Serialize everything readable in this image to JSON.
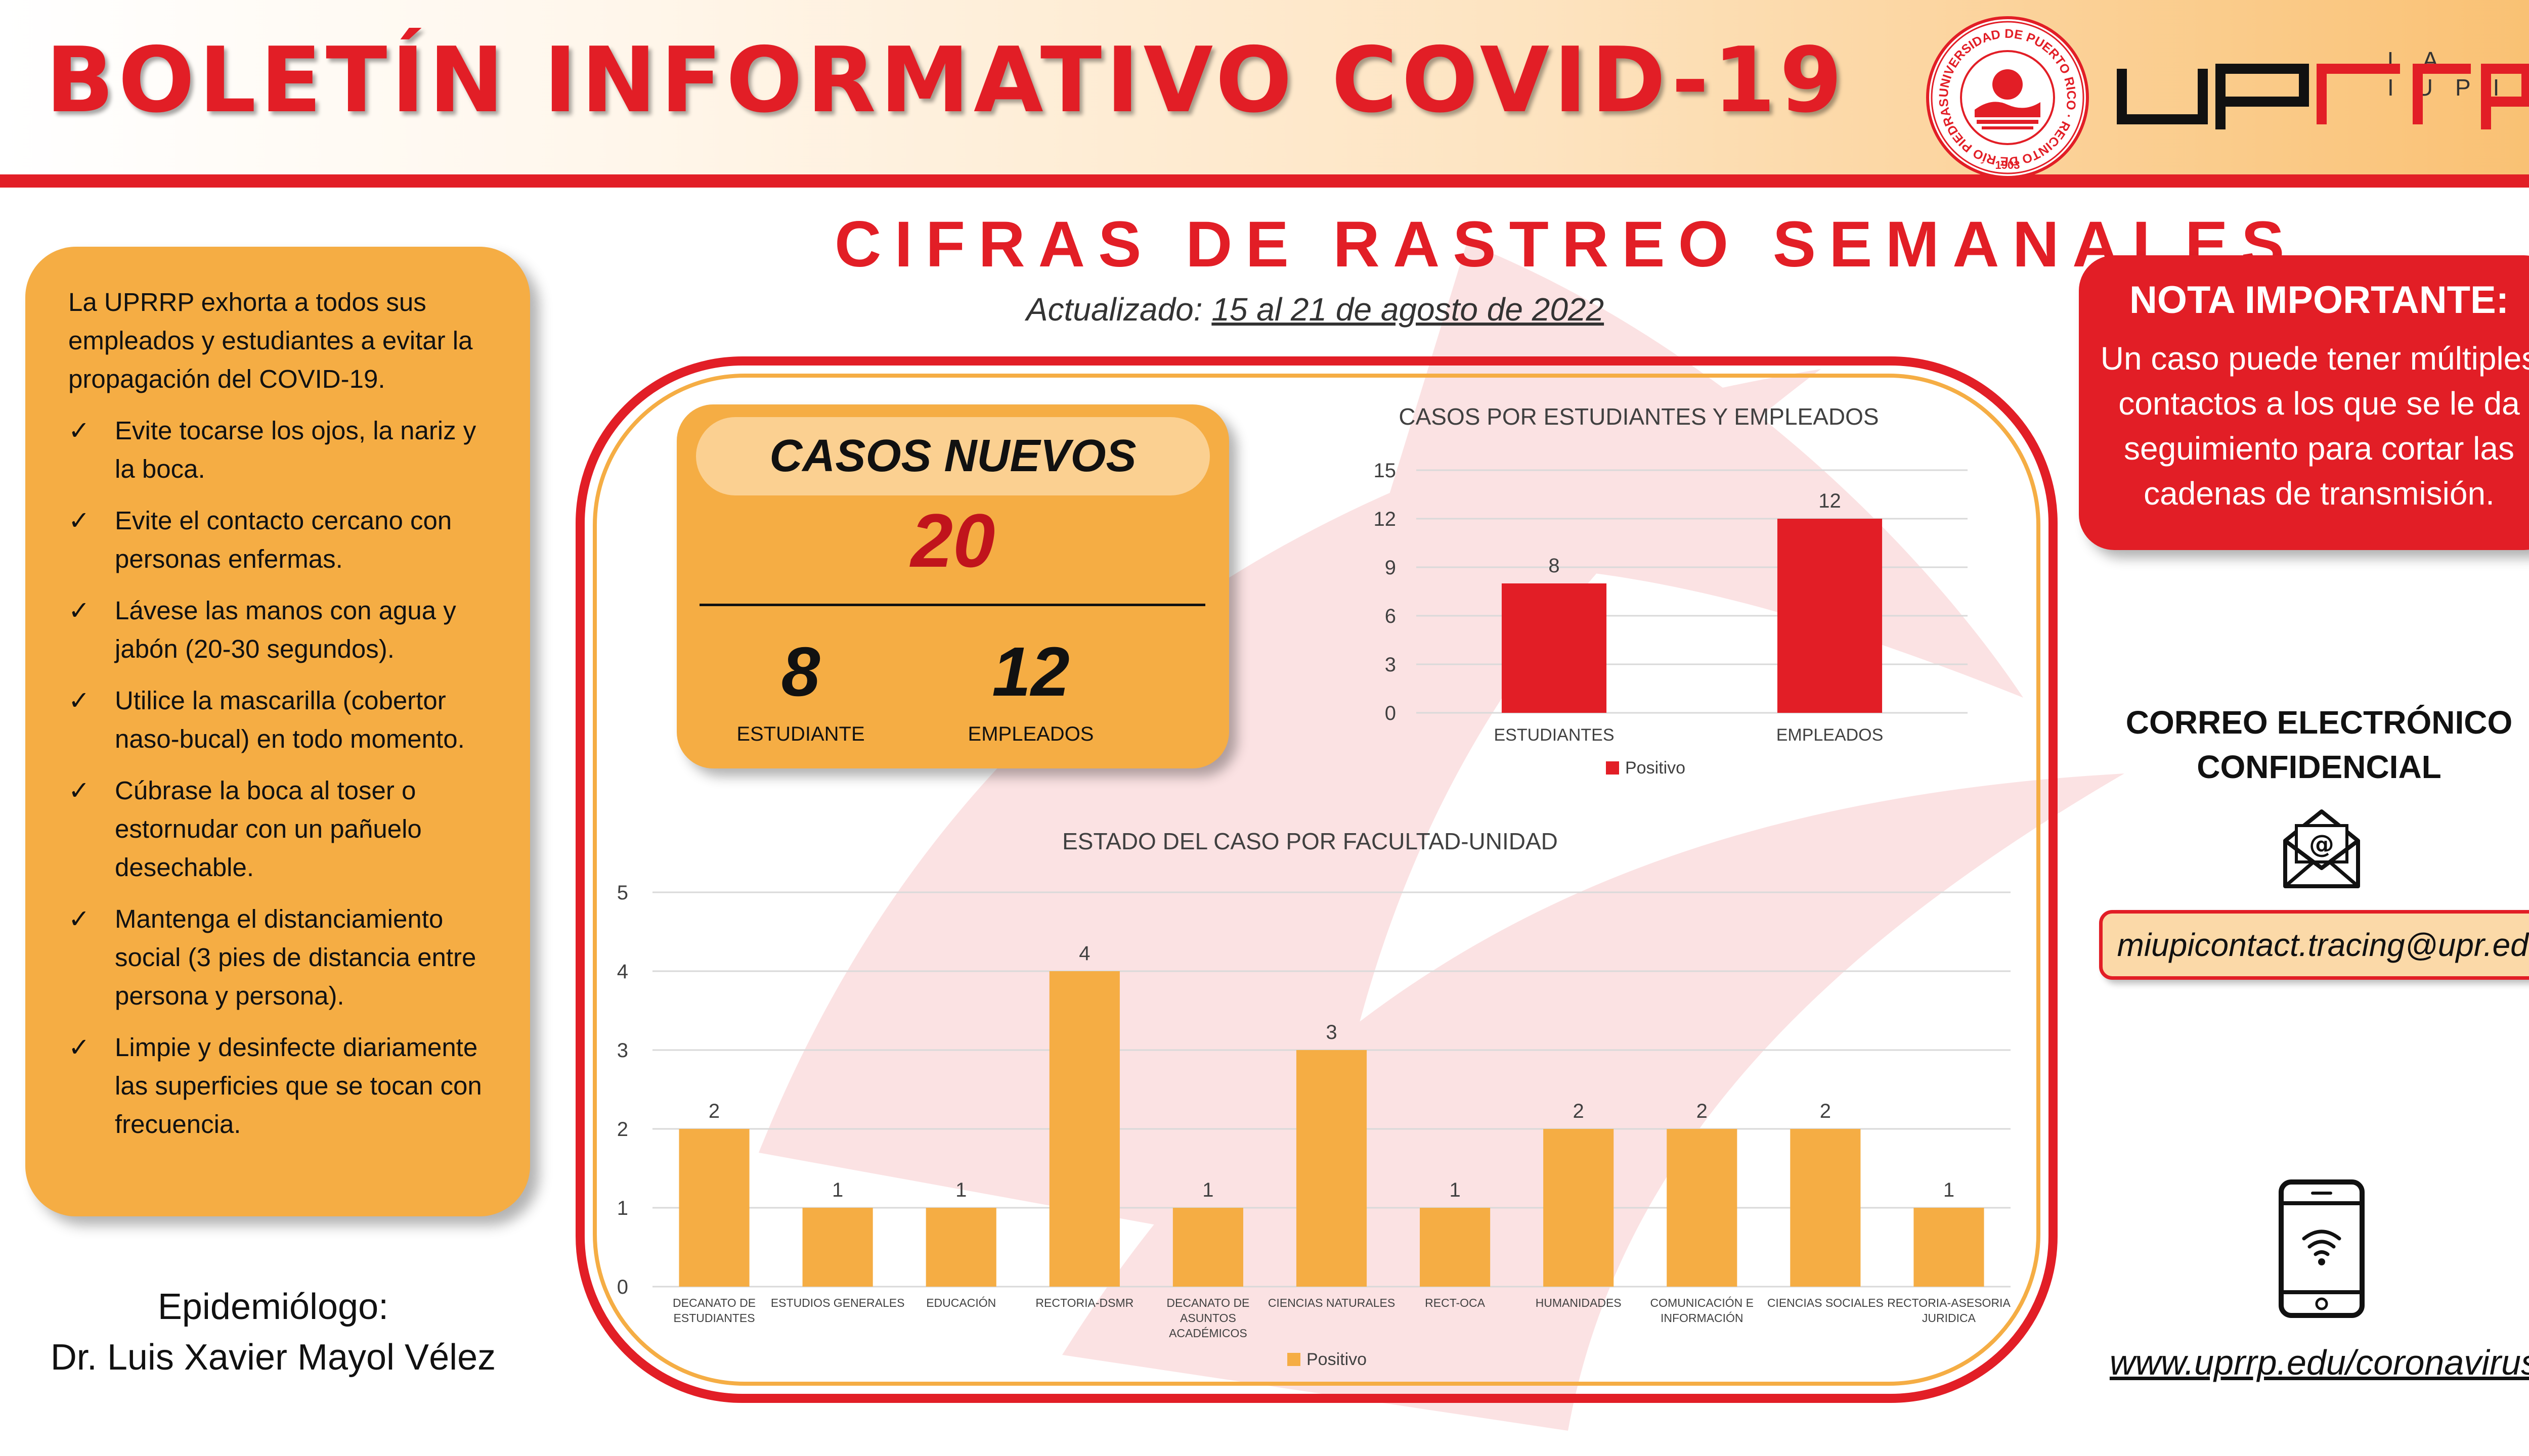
{
  "header": {
    "title": "BOLETÍN INFORMATIVO COVID-19",
    "seal_ring_text": "UNIVERSIDAD DE PUERTO RICO · RECINTO DE RÍO PIEDRAS",
    "seal_year": "1903",
    "brand_subtitle": "LA IUPI",
    "brand_logo_text": "uprrp"
  },
  "main": {
    "title": "CIFRAS DE RASTREO SEMANALES",
    "updated_label": "Actualizado:",
    "updated_date": "15 al 21 de agosto de 2022"
  },
  "left_panel": {
    "intro": "La UPRRP exhorta a todos sus empleados y estudiantes a evitar la propagación del COVID-19.",
    "tips": [
      "Evite tocarse los ojos, la nariz y la boca.",
      "Evite el contacto cercano con personas enfermas.",
      "Lávese las manos con agua y jabón (20-30 segundos).",
      "Utilice la mascarilla (cobertor naso-bucal) en todo momento.",
      "Cúbrase la boca al toser o estornudar con un pañuelo desechable.",
      "Mantenga el distanciamiento social (3 pies de distancia entre persona y persona).",
      "Limpie y desinfecte diariamente las superficies que se tocan con frecuencia."
    ],
    "check_glyph": "✓",
    "epidemiologist_label": "Epidemiólogo:",
    "epidemiologist_name": "Dr. Luis Xavier Mayol Vélez"
  },
  "cases": {
    "title": "CASOS NUEVOS",
    "total": "20",
    "students_value": "8",
    "students_label": "ESTUDIANTE",
    "employees_value": "12",
    "employees_label": "EMPLEADOS"
  },
  "chart_data": [
    {
      "type": "bar",
      "title": "CASOS POR ESTUDIANTES Y EMPLEADOS",
      "categories": [
        "ESTUDIANTES",
        "EMPLEADOS"
      ],
      "series": [
        {
          "name": "Positivo",
          "values": [
            8,
            12
          ],
          "color": "#e21e26"
        }
      ],
      "ylim": [
        0,
        15
      ],
      "yticks": [
        0,
        3,
        6,
        9,
        12,
        15
      ],
      "grid": true,
      "legend": "bottom",
      "data_labels": true
    },
    {
      "type": "bar",
      "title": "ESTADO DEL CASO POR FACULTAD-UNIDAD",
      "categories": [
        [
          "DECANATO DE",
          "ESTUDIANTES"
        ],
        [
          "ESTUDIOS GENERALES"
        ],
        [
          "EDUCACIÓN"
        ],
        [
          "RECTORIA-DSMR"
        ],
        [
          "DECANATO DE",
          "ASUNTOS",
          "ACADÉMICOS"
        ],
        [
          "CIENCIAS NATURALES"
        ],
        [
          "RECT-OCA"
        ],
        [
          "HUMANIDADES"
        ],
        [
          "COMUNICACIÓN E",
          "INFORMACIÓN"
        ],
        [
          "CIENCIAS SOCIALES"
        ],
        [
          "RECTORIA-ASESORIA",
          "JURIDICA"
        ]
      ],
      "series": [
        {
          "name": "Positivo",
          "values": [
            2,
            1,
            1,
            4,
            1,
            3,
            1,
            2,
            2,
            2,
            1
          ],
          "color": "#f5ad44"
        }
      ],
      "ylim": [
        0,
        5
      ],
      "yticks": [
        0,
        1,
        2,
        3,
        4,
        5
      ],
      "grid": true,
      "legend": "bottom",
      "data_labels": true
    }
  ],
  "note": {
    "title": "NOTA IMPORTANTE:",
    "text": "Un caso puede tener múltiples contactos a los que se le da seguimiento para cortar las cadenas de transmisión."
  },
  "contact": {
    "email_heading_line1": "CORREO ELECTRÓNICO",
    "email_heading_line2": "CONFIDENCIAL",
    "email": "miupicontact.tracing@upr.edu",
    "website": "www.uprrp.edu/coronavirus",
    "icons": [
      "mail-icon",
      "phone-icon"
    ]
  },
  "colors": {
    "primary_red": "#e21e26",
    "accent_orange": "#f5ad44",
    "light_orange": "#fbd091"
  }
}
